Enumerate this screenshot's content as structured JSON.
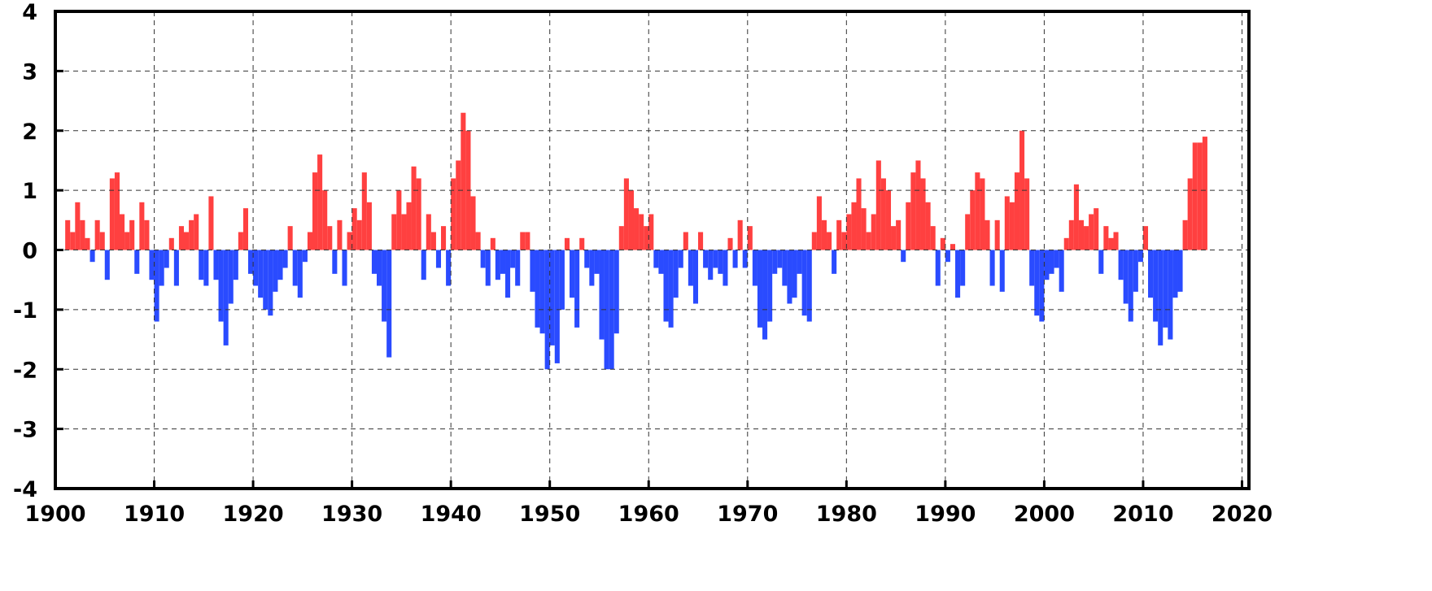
{
  "chart_data": {
    "type": "bar",
    "positive_color": "#ff4040",
    "negative_color": "#2a4bff",
    "grid": true,
    "xlim": [
      1900,
      2020.7
    ],
    "ylim": [
      -4,
      4
    ],
    "xticks": [
      1900,
      1910,
      1920,
      1930,
      1940,
      1950,
      1960,
      1970,
      1980,
      1990,
      2000,
      2010,
      2020
    ],
    "yticks": [
      -4,
      -3,
      -2,
      -1,
      0,
      1,
      2,
      3,
      4
    ],
    "x": [
      1901,
      1901.5,
      1902,
      1902.5,
      1903,
      1903.5,
      1904,
      1904.5,
      1905,
      1905.5,
      1906,
      1906.5,
      1907,
      1907.5,
      1908,
      1908.5,
      1909,
      1909.5,
      1910,
      1910.5,
      1911,
      1911.5,
      1912,
      1912.5,
      1913,
      1913.5,
      1914,
      1914.5,
      1915,
      1915.5,
      1916,
      1916.5,
      1917,
      1917.5,
      1918,
      1918.5,
      1919,
      1919.5,
      1920,
      1920.5,
      1921,
      1921.5,
      1922,
      1922.5,
      1923,
      1923.5,
      1924,
      1924.5,
      1925,
      1925.5,
      1926,
      1926.5,
      1927,
      1927.5,
      1928,
      1928.5,
      1929,
      1929.5,
      1930,
      1930.5,
      1931,
      1931.5,
      1932,
      1932.5,
      1933,
      1933.5,
      1934,
      1934.5,
      1935,
      1935.5,
      1936,
      1936.5,
      1937,
      1937.5,
      1938,
      1938.5,
      1939,
      1939.5,
      1940,
      1940.5,
      1941,
      1941.5,
      1942,
      1942.5,
      1943,
      1943.5,
      1944,
      1944.5,
      1945,
      1945.5,
      1946,
      1946.5,
      1947,
      1947.5,
      1948,
      1948.5,
      1949,
      1949.5,
      1950,
      1950.5,
      1951,
      1951.5,
      1952,
      1952.5,
      1953,
      1953.5,
      1954,
      1954.5,
      1955,
      1955.5,
      1956,
      1956.5,
      1957,
      1957.5,
      1958,
      1958.5,
      1959,
      1959.5,
      1960,
      1960.5,
      1961,
      1961.5,
      1962,
      1962.5,
      1963,
      1963.5,
      1964,
      1964.5,
      1965,
      1965.5,
      1966,
      1966.5,
      1967,
      1967.5,
      1968,
      1968.5,
      1969,
      1969.5,
      1970,
      1970.5,
      1971,
      1971.5,
      1972,
      1972.5,
      1973,
      1973.5,
      1974,
      1974.5,
      1975,
      1975.5,
      1976,
      1976.5,
      1977,
      1977.5,
      1978,
      1978.5,
      1979,
      1979.5,
      1980,
      1980.5,
      1981,
      1981.5,
      1982,
      1982.5,
      1983,
      1983.5,
      1984,
      1984.5,
      1985,
      1985.5,
      1986,
      1986.5,
      1987,
      1987.5,
      1988,
      1988.5,
      1989,
      1989.5,
      1990,
      1990.5,
      1991,
      1991.5,
      1992,
      1992.5,
      1993,
      1993.5,
      1994,
      1994.5,
      1995,
      1995.5,
      1996,
      1996.5,
      1997,
      1997.5,
      1998,
      1998.5,
      1999,
      1999.5,
      2000,
      2000.5,
      2001,
      2001.5,
      2002,
      2002.5,
      2003,
      2003.5,
      2004,
      2004.5,
      2005,
      2005.5,
      2006,
      2006.5,
      2007,
      2007.5,
      2008,
      2008.5,
      2009,
      2009.5,
      2010,
      2010.5,
      2011,
      2011.5,
      2012,
      2012.5,
      2013,
      2013.5,
      2014,
      2014.5,
      2015,
      2015.5,
      2016
    ],
    "values": [
      0.5,
      0.3,
      0.8,
      0.5,
      0.2,
      -0.2,
      0.5,
      0.3,
      -0.5,
      1.2,
      1.3,
      0.6,
      0.3,
      0.5,
      -0.4,
      0.8,
      0.5,
      -0.5,
      -1.2,
      -0.6,
      -0.3,
      0.2,
      -0.6,
      0.4,
      0.3,
      0.5,
      0.6,
      -0.5,
      -0.6,
      0.9,
      -0.5,
      -1.2,
      -1.6,
      -0.9,
      -0.5,
      0.3,
      0.7,
      -0.4,
      -0.6,
      -0.8,
      -1.0,
      -1.1,
      -0.7,
      -0.5,
      -0.3,
      0.4,
      -0.6,
      -0.8,
      -0.2,
      0.3,
      1.3,
      1.6,
      1.0,
      0.4,
      -0.4,
      0.5,
      -0.6,
      0.3,
      0.7,
      0.5,
      1.3,
      0.8,
      -0.4,
      -0.6,
      -1.2,
      -1.8,
      0.6,
      1.0,
      0.6,
      0.8,
      1.4,
      1.2,
      -0.5,
      0.6,
      0.3,
      -0.3,
      0.4,
      -0.6,
      1.2,
      1.5,
      2.3,
      2.0,
      0.9,
      0.3,
      -0.3,
      -0.6,
      0.2,
      -0.5,
      -0.4,
      -0.8,
      -0.3,
      -0.6,
      0.3,
      0.3,
      -0.7,
      -1.3,
      -1.4,
      -2.0,
      -1.6,
      -1.9,
      -1.0,
      0.2,
      -0.8,
      -1.3,
      0.2,
      -0.3,
      -0.6,
      -0.4,
      -1.5,
      -2.0,
      -2.0,
      -1.4,
      0.4,
      1.2,
      1.0,
      0.7,
      0.6,
      0.4,
      0.6,
      -0.3,
      -0.4,
      -1.2,
      -1.3,
      -0.8,
      -0.3,
      0.3,
      -0.6,
      -0.9,
      0.3,
      -0.3,
      -0.5,
      -0.3,
      -0.4,
      -0.6,
      0.2,
      -0.3,
      0.5,
      -0.3,
      0.4,
      -0.6,
      -1.3,
      -1.5,
      -1.2,
      -0.4,
      -0.3,
      -0.6,
      -0.9,
      -0.8,
      -0.4,
      -1.1,
      -1.2,
      0.3,
      0.9,
      0.5,
      0.3,
      -0.4,
      0.5,
      0.3,
      0.6,
      0.8,
      1.2,
      0.7,
      0.3,
      0.6,
      1.5,
      1.2,
      1.0,
      0.4,
      0.5,
      -0.2,
      0.8,
      1.3,
      1.5,
      1.2,
      0.8,
      0.4,
      -0.6,
      0.2,
      -0.2,
      0.1,
      -0.8,
      -0.6,
      0.6,
      1.0,
      1.3,
      1.2,
      0.5,
      -0.6,
      0.5,
      -0.7,
      0.9,
      0.8,
      1.3,
      2.0,
      1.2,
      -0.6,
      -1.1,
      -1.2,
      -0.5,
      -0.4,
      -0.3,
      -0.7,
      0.2,
      0.5,
      1.1,
      0.5,
      0.4,
      0.6,
      0.7,
      -0.4,
      0.4,
      0.2,
      0.3,
      -0.5,
      -0.9,
      -1.2,
      -0.7,
      -0.2,
      0.4,
      -0.8,
      -1.2,
      -1.6,
      -1.3,
      -1.5,
      -0.8,
      -0.7,
      0.5,
      1.2,
      1.8,
      1.8,
      1.9
    ]
  }
}
